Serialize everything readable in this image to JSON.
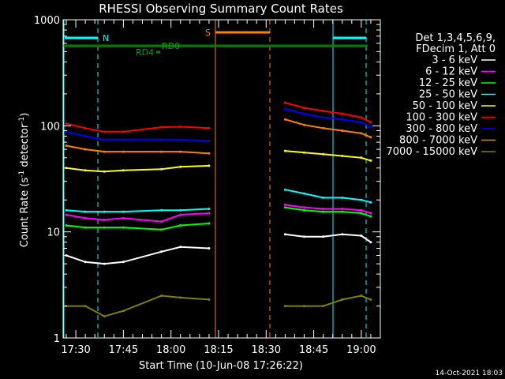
{
  "chart_data": {
    "type": "line",
    "title": "RHESSI Observing Summary Count Rates",
    "xlabel": "Start Time (10-Jun-08 17:26:22)",
    "ylabel_parts": [
      "Count Rate (s",
      "-1",
      " detector",
      "-1",
      ")"
    ],
    "y_scale": "log",
    "ylim": [
      1,
      1000
    ],
    "y_ticks": [
      {
        "v": 1,
        "label": "1"
      },
      {
        "v": 10,
        "label": "10"
      },
      {
        "v": 100,
        "label": "100"
      },
      {
        "v": 1000,
        "label": "1000"
      }
    ],
    "x_ticks": [
      "17:30",
      "17:45",
      "18:00",
      "18:15",
      "18:30",
      "18:45",
      "19:00"
    ],
    "timestamp": "14-Oct-2021 18:03",
    "legend_header": [
      "Det 1,3,4,5,6,9,",
      "FDecim 1, Att 0"
    ],
    "series": [
      {
        "name": "3 - 6 keV",
        "color": "#ffffff",
        "values": [
          6.0,
          5.2,
          5.0,
          5.2,
          6.5,
          7.2,
          7.0,
          null,
          null,
          null,
          9.5,
          9.0,
          9.0,
          9.5,
          9.2,
          8.0
        ]
      },
      {
        "name": "6 - 12 keV",
        "color": "#ff00ff",
        "values": [
          14.5,
          13.5,
          13.0,
          13.5,
          12.5,
          14.5,
          15.0,
          null,
          null,
          null,
          18.0,
          17.0,
          16.5,
          16.5,
          16.0,
          15.0
        ]
      },
      {
        "name": "12 - 25 keV",
        "color": "#00ff00",
        "values": [
          11.5,
          11.0,
          11.0,
          11.0,
          10.5,
          11.5,
          12.0,
          null,
          null,
          null,
          17.0,
          16.0,
          15.5,
          15.5,
          15.0,
          14.0
        ]
      },
      {
        "name": "25 - 50 keV",
        "color": "#00ffff",
        "values": [
          16.0,
          15.5,
          15.5,
          15.5,
          16.0,
          16.0,
          16.5,
          null,
          null,
          null,
          25.0,
          23.0,
          21.0,
          21.0,
          20.0,
          19.0
        ]
      },
      {
        "name": "50 - 100 keV",
        "color": "#ffff00",
        "values": [
          40.0,
          38.0,
          37.0,
          38.0,
          39.0,
          41.0,
          42.0,
          null,
          null,
          null,
          58.0,
          56.0,
          54.0,
          52.0,
          50.0,
          47.0
        ]
      },
      {
        "name": "100 - 300 keV",
        "color": "#ff0000",
        "values": [
          105,
          95,
          88,
          88,
          97,
          98,
          95,
          null,
          null,
          null,
          165,
          148,
          138,
          130,
          120,
          108
        ]
      },
      {
        "name": "300 - 800 keV",
        "color": "#0000ff",
        "values": [
          88,
          80,
          74,
          74,
          74,
          74,
          72,
          null,
          null,
          null,
          145,
          130,
          120,
          115,
          108,
          97
        ]
      },
      {
        "name": "800 - 7000 keV",
        "color": "#ff8000",
        "values": [
          65,
          60,
          57,
          57,
          57,
          57,
          55,
          null,
          null,
          null,
          115,
          102,
          95,
          90,
          85,
          78
        ]
      },
      {
        "name": "7000 - 15000 keV",
        "color": "#808000",
        "values": [
          2.0,
          2.0,
          1.6,
          1.8,
          2.5,
          2.4,
          2.3,
          null,
          null,
          null,
          2.0,
          2.0,
          2.0,
          2.3,
          2.5,
          2.3
        ]
      }
    ],
    "series_times": [
      "17:27",
      "17:33",
      "17:39",
      "17:45",
      "17:57",
      "18:03",
      "18:12",
      "18:14",
      "18:24",
      "18:34",
      "18:36",
      "18:42",
      "18:48",
      "18:54",
      "19:00",
      "19:03"
    ],
    "markers": {
      "night_label": "N",
      "saa_label": "S",
      "rd0_label": "RD0",
      "rd4_label": "RD4"
    }
  }
}
